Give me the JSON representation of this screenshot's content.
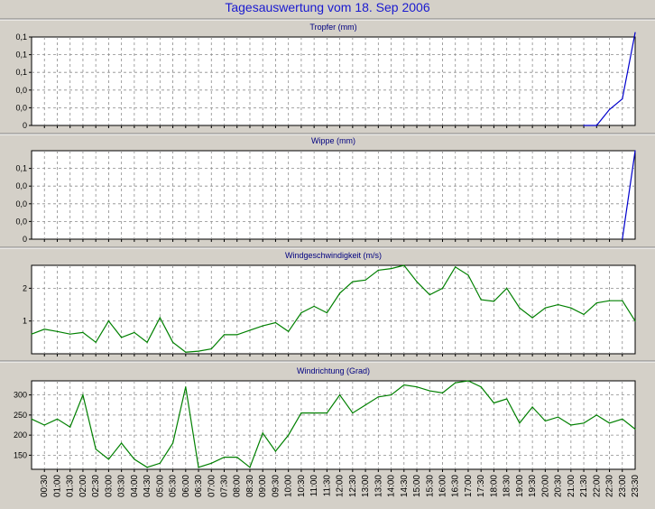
{
  "title": "Tagesauswertung vom 18. Sep 2006",
  "colors": {
    "background": "#d4d0c8",
    "plot": "#ffffff",
    "grid": "#8c8c8c",
    "blue": "#0000cc",
    "green": "#008000",
    "title": "#1a1ad0"
  },
  "chart_data": [
    {
      "type": "line",
      "title": "Tropfer (mm)",
      "color": "#0000cc",
      "ylim": [
        0,
        0.1
      ],
      "yticks": [
        0,
        0.02,
        0.04,
        0.06,
        0.08,
        0.1
      ],
      "ytick_labels": [
        "0",
        "0,0",
        "0,0",
        "0,1",
        "0,1",
        "0,1"
      ],
      "x": [
        "21:30",
        "22:00",
        "22:30",
        "23:00",
        "23:30"
      ],
      "values": [
        0,
        0,
        0.018,
        0.03,
        0.105
      ]
    },
    {
      "type": "line",
      "title": "Wippe (mm)",
      "color": "#0000cc",
      "ylim": [
        0,
        0.1
      ],
      "yticks": [
        0,
        0.02,
        0.04,
        0.06,
        0.08
      ],
      "ytick_labels": [
        "0",
        "0,0",
        "0,0",
        "0,0",
        "0,1"
      ],
      "x": [
        "23:00",
        "23:30"
      ],
      "values": [
        0,
        0.1
      ]
    },
    {
      "type": "line",
      "title": "Windgeschwindigkeit (m/s)",
      "color": "#008000",
      "ylim": [
        0,
        2.7
      ],
      "yticks": [
        1,
        2
      ],
      "ytick_labels": [
        "1",
        "2"
      ],
      "x": [
        "00:00",
        "00:30",
        "01:00",
        "01:30",
        "02:00",
        "02:30",
        "03:00",
        "03:30",
        "04:00",
        "04:30",
        "05:00",
        "05:30",
        "06:00",
        "06:30",
        "07:00",
        "07:30",
        "08:00",
        "08:30",
        "09:00",
        "09:30",
        "10:00",
        "10:30",
        "11:00",
        "11:30",
        "12:00",
        "12:30",
        "13:00",
        "13:30",
        "14:00",
        "14:30",
        "15:00",
        "15:30",
        "16:00",
        "16:30",
        "17:00",
        "17:30",
        "18:00",
        "18:30",
        "19:00",
        "19:30",
        "20:00",
        "20:30",
        "21:00",
        "21:30",
        "22:00",
        "22:30",
        "23:00",
        "23:30"
      ],
      "values": [
        0.6,
        0.75,
        0.68,
        0.6,
        0.65,
        0.35,
        1.0,
        0.5,
        0.65,
        0.35,
        1.1,
        0.35,
        0.05,
        0.08,
        0.15,
        0.58,
        0.58,
        0.72,
        0.85,
        0.95,
        0.68,
        1.25,
        1.45,
        1.25,
        1.85,
        2.2,
        2.25,
        2.55,
        2.6,
        2.7,
        2.2,
        1.8,
        2.0,
        2.65,
        2.4,
        1.65,
        1.6,
        2.0,
        1.4,
        1.1,
        1.4,
        1.5,
        1.4,
        1.2,
        1.55,
        1.62,
        1.62,
        1.0
      ]
    },
    {
      "type": "line",
      "title": "Windrichtung (Grad)",
      "color": "#008000",
      "ylim": [
        115,
        335
      ],
      "yticks": [
        150,
        200,
        250,
        300
      ],
      "ytick_labels": [
        "150",
        "200",
        "250",
        "300"
      ],
      "x": [
        "00:00",
        "00:30",
        "01:00",
        "01:30",
        "02:00",
        "02:30",
        "03:00",
        "03:30",
        "04:00",
        "04:30",
        "05:00",
        "05:30",
        "06:00",
        "06:30",
        "07:00",
        "07:30",
        "08:00",
        "08:30",
        "09:00",
        "09:30",
        "10:00",
        "10:30",
        "11:00",
        "11:30",
        "12:00",
        "12:30",
        "13:00",
        "13:30",
        "14:00",
        "14:30",
        "15:00",
        "15:30",
        "16:00",
        "16:30",
        "17:00",
        "17:30",
        "18:00",
        "18:30",
        "19:00",
        "19:30",
        "20:00",
        "20:30",
        "21:00",
        "21:30",
        "22:00",
        "22:30",
        "23:00",
        "23:30"
      ],
      "values": [
        240,
        225,
        240,
        220,
        300,
        165,
        140,
        180,
        140,
        120,
        130,
        180,
        320,
        120,
        130,
        145,
        145,
        120,
        205,
        160,
        200,
        255,
        255,
        255,
        300,
        255,
        275,
        295,
        300,
        325,
        320,
        310,
        305,
        330,
        335,
        320,
        280,
        290,
        230,
        270,
        235,
        245,
        225,
        230,
        250,
        230,
        240,
        215
      ]
    }
  ],
  "x_axis_labels": [
    "00:30",
    "01:00",
    "01:30",
    "02:00",
    "02:30",
    "03:00",
    "03:30",
    "04:00",
    "04:30",
    "05:00",
    "05:30",
    "06:00",
    "06:30",
    "07:00",
    "07:30",
    "08:00",
    "08:30",
    "09:00",
    "09:30",
    "10:00",
    "10:30",
    "11:00",
    "11:30",
    "12:00",
    "12:30",
    "13:00",
    "13:30",
    "14:00",
    "14:30",
    "15:00",
    "15:30",
    "16:00",
    "16:30",
    "17:00",
    "17:30",
    "18:00",
    "18:30",
    "19:00",
    "19:30",
    "20:00",
    "20:30",
    "21:00",
    "21:30",
    "22:00",
    "22:30",
    "23:00",
    "23:30"
  ]
}
